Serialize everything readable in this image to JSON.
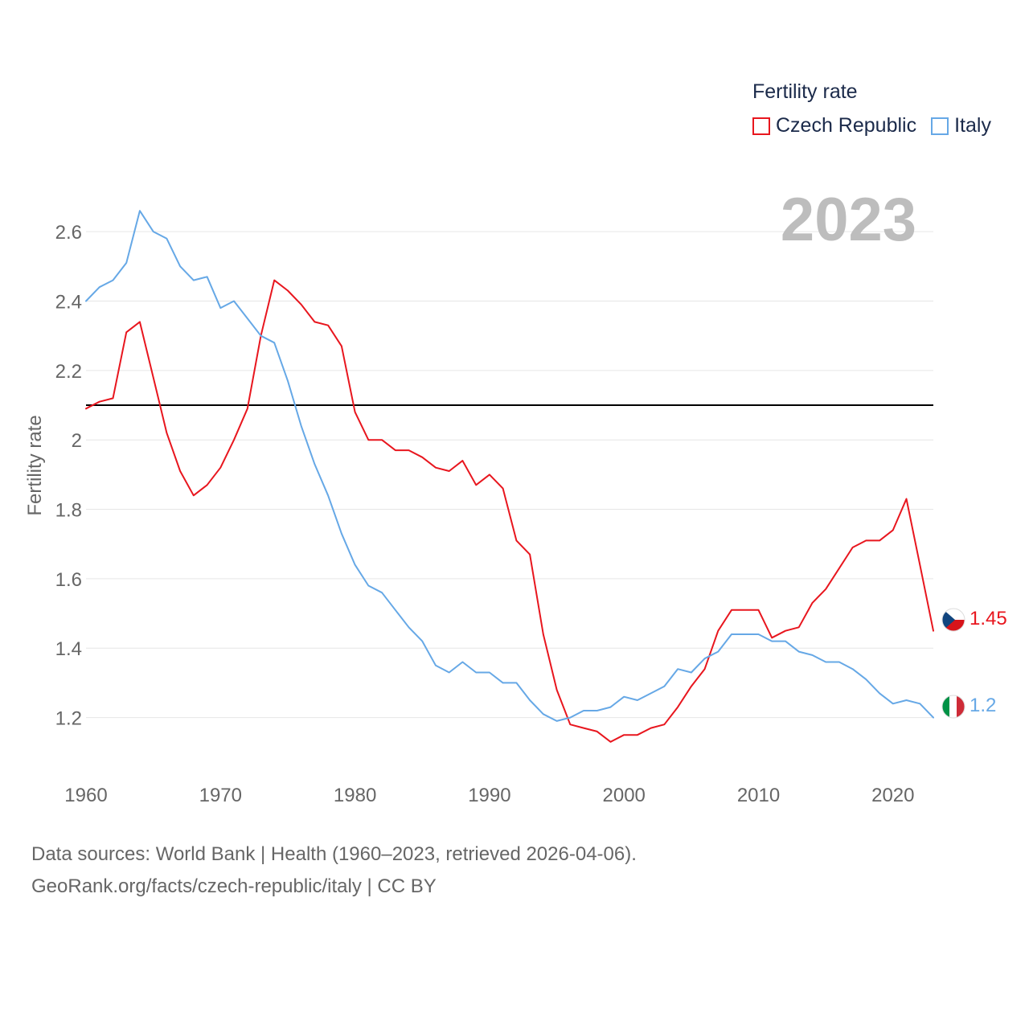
{
  "legend": {
    "title": "Fertility rate",
    "items": [
      {
        "label": "Czech Republic",
        "color": "#e8161e"
      },
      {
        "label": "Italy",
        "color": "#66a8e6"
      }
    ]
  },
  "year_label": "2023",
  "source": {
    "line1": "Data sources: World Bank | Health (1960–2023, retrieved 2026-04-06).",
    "line2": "GeoRank.org/facts/czech-republic/italy | CC BY"
  },
  "chart_data": {
    "type": "line",
    "title": "Fertility rate",
    "xlabel": "",
    "ylabel": "Fertility rate",
    "xlim": [
      1960,
      2023
    ],
    "ylim": [
      1.03,
      2.73
    ],
    "x_ticks": [
      1960,
      1970,
      1980,
      1990,
      2000,
      2010,
      2020
    ],
    "y_ticks": [
      1.2,
      1.4,
      1.6,
      1.8,
      2,
      2.2,
      2.4,
      2.6
    ],
    "y_tick_labels": [
      "1.2",
      "1.4",
      "1.6",
      "1.8",
      "2",
      "2.2",
      "2.4",
      "2.6"
    ],
    "grid": true,
    "reference_line": {
      "y": 2.1,
      "color": "#000000"
    },
    "x": [
      1960,
      1961,
      1962,
      1963,
      1964,
      1965,
      1966,
      1967,
      1968,
      1969,
      1970,
      1971,
      1972,
      1973,
      1974,
      1975,
      1976,
      1977,
      1978,
      1979,
      1980,
      1981,
      1982,
      1983,
      1984,
      1985,
      1986,
      1987,
      1988,
      1989,
      1990,
      1991,
      1992,
      1993,
      1994,
      1995,
      1996,
      1997,
      1998,
      1999,
      2000,
      2001,
      2002,
      2003,
      2004,
      2005,
      2006,
      2007,
      2008,
      2009,
      2010,
      2011,
      2012,
      2013,
      2014,
      2015,
      2016,
      2017,
      2018,
      2019,
      2020,
      2021,
      2022,
      2023
    ],
    "series": [
      {
        "name": "Czech Republic",
        "color": "#e8161e",
        "end_label": "1.45",
        "values": [
          2.09,
          2.11,
          2.12,
          2.31,
          2.34,
          2.18,
          2.02,
          1.91,
          1.84,
          1.87,
          1.92,
          2.0,
          2.09,
          2.3,
          2.46,
          2.43,
          2.39,
          2.34,
          2.33,
          2.27,
          2.08,
          2.0,
          2.0,
          1.97,
          1.97,
          1.95,
          1.92,
          1.91,
          1.94,
          1.87,
          1.9,
          1.86,
          1.71,
          1.67,
          1.44,
          1.28,
          1.18,
          1.17,
          1.16,
          1.13,
          1.15,
          1.15,
          1.17,
          1.18,
          1.23,
          1.29,
          1.34,
          1.45,
          1.51,
          1.51,
          1.51,
          1.43,
          1.45,
          1.46,
          1.53,
          1.57,
          1.63,
          1.69,
          1.71,
          1.71,
          1.74,
          1.83,
          1.64,
          1.45
        ]
      },
      {
        "name": "Italy",
        "color": "#66a8e6",
        "end_label": "1.2",
        "values": [
          2.4,
          2.44,
          2.46,
          2.51,
          2.66,
          2.6,
          2.58,
          2.5,
          2.46,
          2.47,
          2.38,
          2.4,
          2.35,
          2.3,
          2.28,
          2.17,
          2.04,
          1.93,
          1.84,
          1.73,
          1.64,
          1.58,
          1.56,
          1.51,
          1.46,
          1.42,
          1.35,
          1.33,
          1.36,
          1.33,
          1.33,
          1.3,
          1.3,
          1.25,
          1.21,
          1.19,
          1.2,
          1.22,
          1.22,
          1.23,
          1.26,
          1.25,
          1.27,
          1.29,
          1.34,
          1.33,
          1.37,
          1.39,
          1.44,
          1.44,
          1.44,
          1.42,
          1.42,
          1.39,
          1.38,
          1.36,
          1.36,
          1.34,
          1.31,
          1.27,
          1.24,
          1.25,
          1.24,
          1.2
        ]
      }
    ]
  }
}
